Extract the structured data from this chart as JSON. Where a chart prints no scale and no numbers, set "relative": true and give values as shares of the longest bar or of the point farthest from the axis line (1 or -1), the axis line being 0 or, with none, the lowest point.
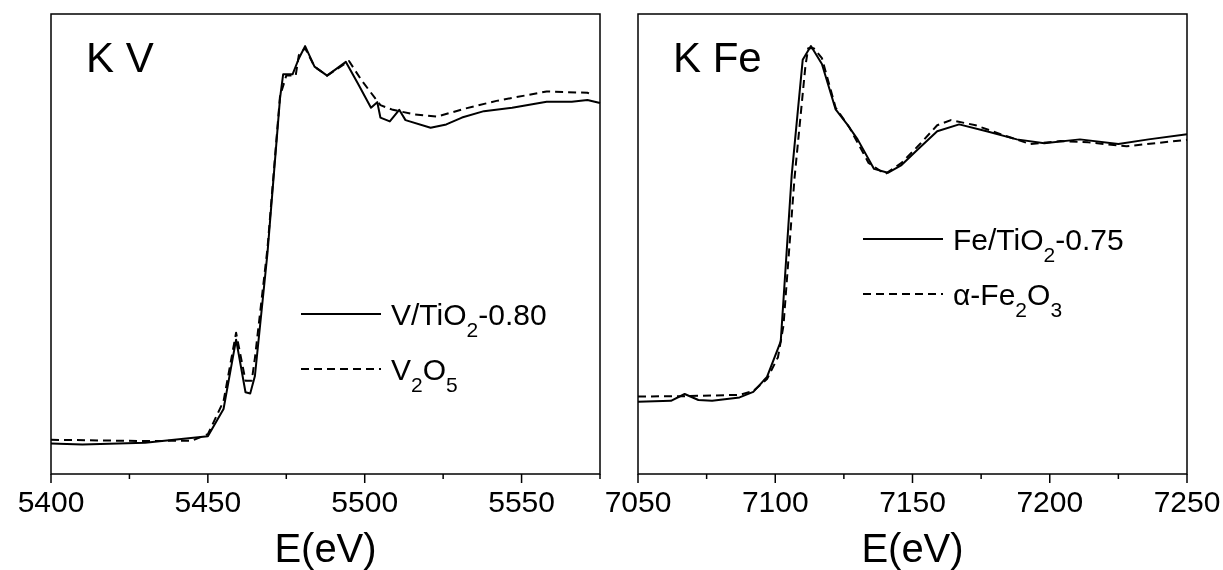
{
  "chart_data": [
    {
      "type": "line",
      "title": "K V",
      "xlabel": "E(eV)",
      "relative": true,
      "legend": "bottom right",
      "xlim": [
        5400,
        5575
      ],
      "xticks": [
        5400,
        {
          "value": 5425,
          "label": null
        },
        5450,
        {
          "value": 5475,
          "label": null
        },
        5500,
        {
          "value": 5525,
          "label": null
        },
        5550,
        {
          "value": 5575,
          "label": null
        }
      ],
      "series": [
        {
          "name": "V/TiO$_{2}$-0.80",
          "color": "#000000",
          "line_style": "solid",
          "x": [
            5400,
            5410,
            5430,
            5450,
            5455,
            5459,
            5462,
            5463.5,
            5465,
            5469,
            5473,
            5474,
            5477,
            5479,
            5481,
            5484,
            5488,
            5494,
            5498,
            5502,
            5504,
            5505,
            5508,
            5511,
            5513,
            5521,
            5526,
            5531,
            5538,
            5547,
            5558,
            5566,
            5571,
            5575
          ],
          "values": [
            0.071,
            0.069,
            0.073,
            0.088,
            0.152,
            0.314,
            0.191,
            0.188,
            0.229,
            0.516,
            0.878,
            0.934,
            0.934,
            0.971,
            1.0,
            0.952,
            0.931,
            0.963,
            0.91,
            0.856,
            0.869,
            0.833,
            0.824,
            0.851,
            0.827,
            0.809,
            0.817,
            0.833,
            0.848,
            0.856,
            0.87,
            0.87,
            0.874,
            0.867
          ]
        },
        {
          "name": "V$_{2}$O$_{5}$",
          "color": "#000000",
          "line_style": "dashed",
          "x": [
            5400,
            5430,
            5445,
            5450,
            5455,
            5459,
            5462,
            5464,
            5465,
            5469,
            5473,
            5475,
            5478,
            5479,
            5481,
            5484,
            5488,
            5495,
            5499,
            5505,
            5509,
            5516,
            5523,
            5532,
            5542,
            5558,
            5571,
            5572
          ],
          "values": [
            0.08,
            0.077,
            0.078,
            0.093,
            0.17,
            0.33,
            0.218,
            0.218,
            0.271,
            0.527,
            0.883,
            0.931,
            0.931,
            0.979,
            0.995,
            0.952,
            0.931,
            0.965,
            0.92,
            0.862,
            0.851,
            0.84,
            0.835,
            0.854,
            0.872,
            0.894,
            0.891,
            0.888
          ]
        }
      ]
    },
    {
      "type": "line",
      "title": "K Fe",
      "xlabel": "E(eV)",
      "relative": true,
      "legend": "right",
      "xlim": [
        7050,
        7250
      ],
      "xticks": [
        7050,
        {
          "value": 7075,
          "label": null
        },
        7100,
        {
          "value": 7125,
          "label": null
        },
        7150,
        {
          "value": 7175,
          "label": null
        },
        7200,
        {
          "value": 7225,
          "label": null
        },
        7250
      ],
      "series": [
        {
          "name": "Fe/TiO$_{2}$-0.75",
          "color": "#000000",
          "line_style": "solid",
          "x": [
            7050,
            7062,
            7067,
            7072,
            7077,
            7087,
            7092,
            7097,
            7102,
            7106,
            7110,
            7113,
            7117,
            7122,
            7126,
            7130,
            7136,
            7141,
            7146,
            7152,
            7159,
            7167,
            7177,
            7188,
            7198,
            7211,
            7225,
            7236,
            7250
          ],
          "values": [
            0.169,
            0.171,
            0.187,
            0.173,
            0.171,
            0.179,
            0.192,
            0.227,
            0.31,
            0.699,
            0.968,
            1.0,
            0.958,
            0.852,
            0.819,
            0.782,
            0.713,
            0.704,
            0.722,
            0.759,
            0.801,
            0.817,
            0.801,
            0.782,
            0.773,
            0.782,
            0.771,
            0.782,
            0.794
          ]
        },
        {
          "name": "α-Fe$_{2}$O$_{3}$",
          "color": "#000000",
          "line_style": "dashed",
          "x": [
            7050,
            7068,
            7087,
            7092,
            7097,
            7101,
            7103,
            7107,
            7111,
            7112,
            7114,
            7117,
            7122,
            7127,
            7134,
            7140,
            7146,
            7153,
            7159,
            7164,
            7173,
            7183,
            7193,
            7204,
            7214,
            7228,
            7250
          ],
          "values": [
            0.181,
            0.182,
            0.185,
            0.194,
            0.222,
            0.273,
            0.347,
            0.69,
            0.954,
            0.995,
            0.995,
            0.972,
            0.856,
            0.81,
            0.727,
            0.701,
            0.727,
            0.773,
            0.815,
            0.827,
            0.815,
            0.792,
            0.771,
            0.778,
            0.775,
            0.766,
            0.781
          ]
        }
      ]
    }
  ]
}
